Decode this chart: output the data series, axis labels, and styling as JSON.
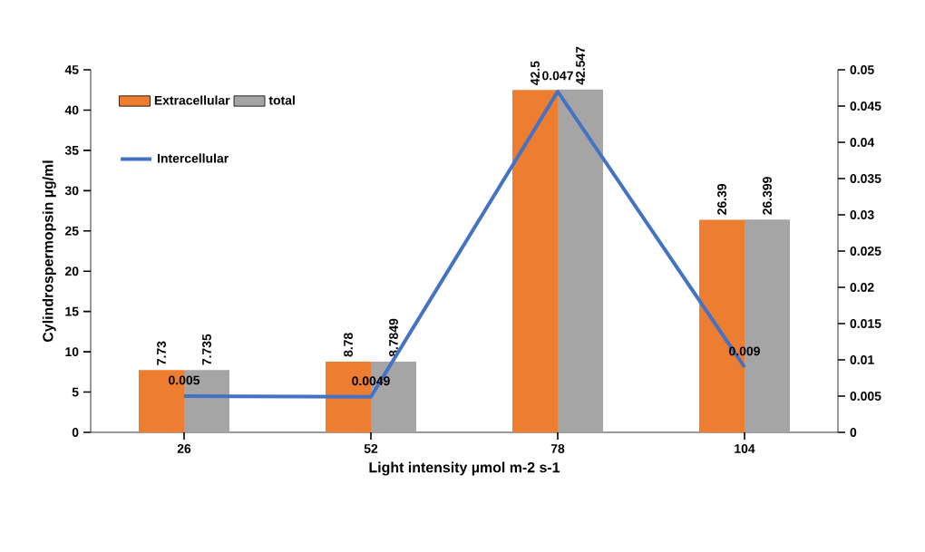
{
  "chart_data": {
    "type": "bar",
    "xlabel": "Light intensity µmol m-2 s-1",
    "ylabel": "Cylindrospermopsin µg/ml",
    "categories": [
      "26",
      "52",
      "78",
      "104"
    ],
    "series": [
      {
        "name": "Extracellular",
        "color": "#ed7d31",
        "values": [
          7.73,
          8.78,
          42.5,
          26.39
        ]
      },
      {
        "name": "total",
        "color": "#a5a5a5",
        "values": [
          7.735,
          8.7849,
          42.547,
          26.399
        ]
      },
      {
        "name": "Intercellular",
        "type": "line",
        "axis": "y2",
        "color": "#4472c4",
        "values": [
          0.005,
          0.0049,
          0.047,
          0.009
        ]
      }
    ],
    "ylim": [
      0,
      45
    ],
    "yticks": [
      0,
      5,
      10,
      15,
      20,
      25,
      30,
      35,
      40,
      45
    ],
    "y2lim": [
      0,
      0.05
    ],
    "y2ticks": [
      0,
      0.005,
      0.01,
      0.015,
      0.02,
      0.025,
      0.03,
      0.035,
      0.04,
      0.045,
      0.05
    ],
    "data_labels": true,
    "legend": "top left",
    "grid": false
  }
}
